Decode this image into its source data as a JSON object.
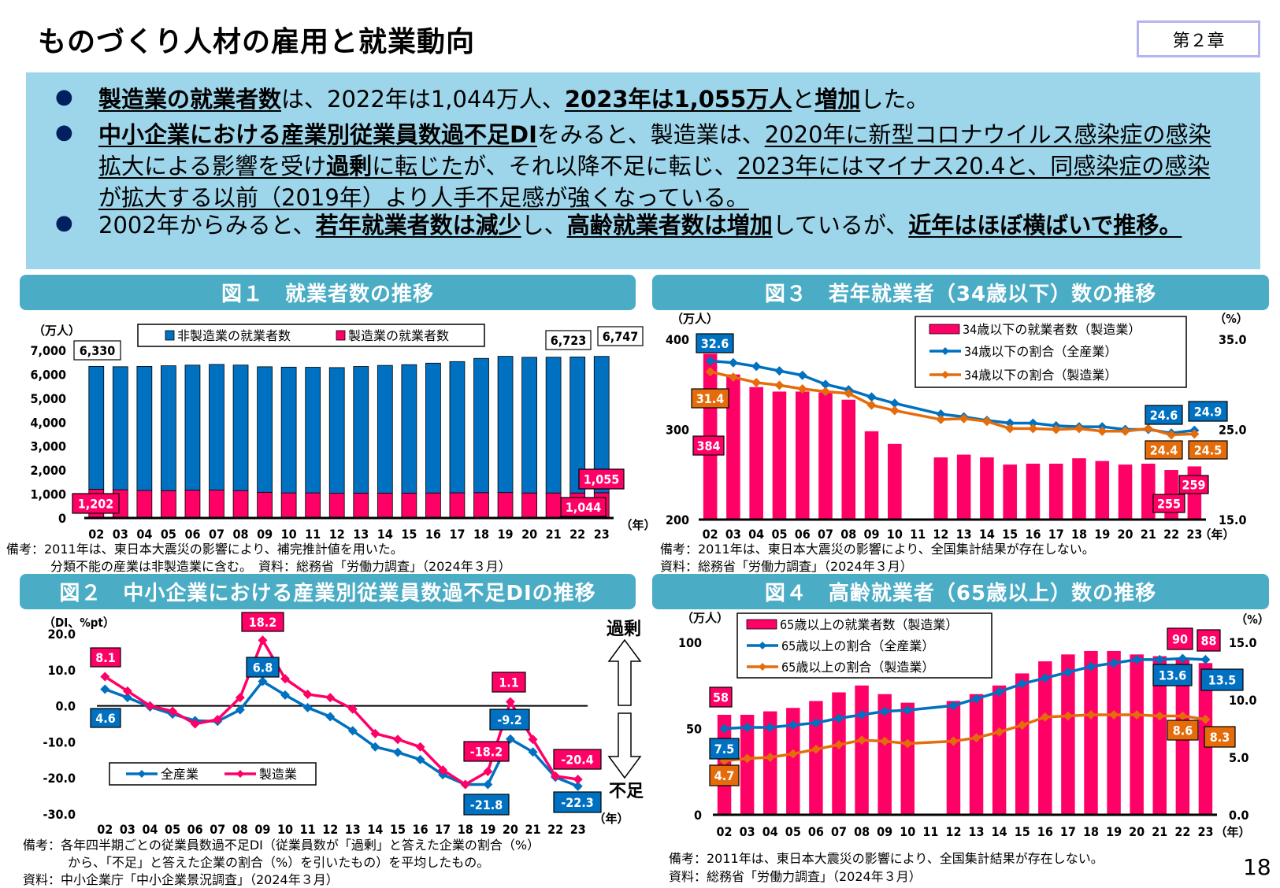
{
  "header": {
    "title": "ものづくり人材の雇用と就業動向",
    "chapter": "第２章"
  },
  "summary": {
    "bullet": "●",
    "lines": [
      [
        {
          "t": "製造業の就業者数",
          "b": 1,
          "u": 1
        },
        {
          "t": "は、2022年は1,044万人、"
        },
        {
          "t": "2023年は1,055万人",
          "b": 1,
          "u": 1
        },
        {
          "t": "と"
        },
        {
          "t": "増加",
          "b": 1,
          "u": 1
        },
        {
          "t": "した。"
        }
      ],
      [
        {
          "t": "中小企業における産業別従業員数過不足DI",
          "b": 1,
          "u": 1
        },
        {
          "t": "をみると、製造業は、"
        },
        {
          "t": "2020年に新型コロナウイルス感染症の感染拡大による影響を受け",
          "u": 1
        },
        {
          "t": "過剰",
          "b": 1,
          "u": 1
        },
        {
          "t": "に転じた",
          "u": 1
        },
        {
          "t": "が、それ以降不足に転じ、"
        },
        {
          "t": "2023年にはマイナス20.4と、同感染症の感染が拡大する以前（2019年）より人手不足感が強くなっている。",
          "u": 1
        }
      ],
      [
        {
          "t": "2002年からみると、"
        },
        {
          "t": "若年就業者数は減少",
          "b": 1,
          "u": 1
        },
        {
          "t": "し、"
        },
        {
          "t": "高齢就業者数は増加",
          "b": 1,
          "u": 1
        },
        {
          "t": "しているが、"
        },
        {
          "t": "近年はほぼ横ばいで推移。",
          "b": 1,
          "u": 1
        }
      ]
    ]
  },
  "figures": [
    {
      "title": "図１　就業者数の推移",
      "notes": [
        "備考：2011年は、東日本大震災の影響により、補完推計値を用いた。",
        "分類不能の産業は非製造業に含む。　資料：総務省「労働力調査」（2024年３月）"
      ]
    },
    {
      "title": "図２　中小企業における産業別従業員数過不足DIの推移",
      "notes": [
        "備考：各年四半期ごとの従業員数過不足DI（従業員数が「過剰」と答えた企業の割合（%）",
        "から、「不足」と答えた企業の割合（%）を引いたもの）を平均したもの。",
        "資料：中小企業庁「中小企業景況調査」（2024年３月）"
      ],
      "up_label": "過剰",
      "down_label": "不足"
    },
    {
      "title": "図３　若年就業者（34歳以下）数の推移",
      "notes": [
        "備考：2011年は、東日本大震災の影響により、全国集計結果が存在しない。",
        "資料：総務省「労働力調査」（2024年３月）"
      ]
    },
    {
      "title": "図４　高齢就業者（65歳以上）数の推移",
      "notes": [
        "備考：2011年は、東日本大震災の影響により、全国集計結果が存在しない。",
        "資料：総務省「労働力調査」（2024年３月）"
      ]
    }
  ],
  "page_number": "18",
  "chart_data": [
    {
      "type": "bar",
      "stacked": true,
      "title": "図１　就業者数の推移",
      "left_unit": "（万人）",
      "x_unit": "（年）",
      "categories": [
        "02",
        "03",
        "04",
        "05",
        "06",
        "07",
        "08",
        "09",
        "10",
        "11",
        "12",
        "13",
        "14",
        "15",
        "16",
        "17",
        "18",
        "19",
        "20",
        "21",
        "22",
        "23"
      ],
      "series": [
        {
          "name": "非製造業の就業者数",
          "kind": "bar",
          "color": "#0070c0",
          "values": [
            5128,
            5138,
            5179,
            5214,
            5221,
            5247,
            5241,
            5241,
            5249,
            5244,
            5248,
            5287,
            5331,
            5362,
            5420,
            5478,
            5604,
            5687,
            5665,
            5668,
            5679,
            5692
          ]
        },
        {
          "name": "製造業の就業者数",
          "kind": "bar",
          "color": "#ff0066",
          "values": [
            1202,
            1178,
            1150,
            1142,
            1161,
            1165,
            1144,
            1073,
            1049,
            1049,
            1032,
            1039,
            1040,
            1039,
            1045,
            1052,
            1060,
            1063,
            1045,
            1045,
            1044,
            1055
          ]
        }
      ],
      "left_axis": {
        "min": 0,
        "max": 7000,
        "ticks": [
          {
            "v": 0,
            "l": "0"
          },
          {
            "v": 1000,
            "l": "1,000"
          },
          {
            "v": 2000,
            "l": "2,000"
          },
          {
            "v": 3000,
            "l": "3,000"
          },
          {
            "v": 4000,
            "l": "4,000"
          },
          {
            "v": 5000,
            "l": "5,000"
          },
          {
            "v": 6000,
            "l": "6,000"
          },
          {
            "v": 7000,
            "l": "7,000"
          }
        ]
      },
      "annotations": [
        {
          "text": "6,330",
          "style": "plain"
        },
        {
          "text": "6,723",
          "style": "plain"
        },
        {
          "text": "6,747",
          "style": "plain"
        },
        {
          "text": "1,202",
          "style": "#ff0066"
        },
        {
          "text": "1,044",
          "style": "#ff0066"
        },
        {
          "text": "1,055",
          "style": "#ff0066"
        }
      ]
    },
    {
      "type": "line",
      "title": "図２　中小企業における産業別従業員数過不足DIの推移",
      "left_unit": "（DI、%pt）",
      "x_unit": "（年）",
      "categories": [
        "02",
        "03",
        "04",
        "05",
        "06",
        "07",
        "08",
        "09",
        "10",
        "11",
        "12",
        "13",
        "14",
        "15",
        "16",
        "17",
        "18",
        "19",
        "20",
        "21",
        "22",
        "23"
      ],
      "series": [
        {
          "name": "全産業",
          "kind": "line",
          "axis": "left",
          "color": "#0070c0",
          "values": [
            4.6,
            2.3,
            -0.3,
            -2.3,
            -4.1,
            -4.3,
            -1.1,
            6.8,
            3.0,
            -0.5,
            -3.0,
            -6.9,
            -11.4,
            -12.9,
            -14.9,
            -19.1,
            -21.8,
            -21.8,
            -9.2,
            -12.8,
            -19.8,
            -22.3
          ]
        },
        {
          "name": "製造業",
          "kind": "line",
          "axis": "left",
          "color": "#ff0066",
          "values": [
            8.1,
            4.1,
            0.0,
            -1.5,
            -5.0,
            -3.8,
            2.3,
            18.2,
            7.5,
            3.2,
            2.3,
            -0.9,
            -7.7,
            -9.3,
            -11.4,
            -17.8,
            -21.8,
            -18.2,
            1.1,
            -9.3,
            -19.5,
            -20.4
          ]
        }
      ],
      "left_axis": {
        "min": -30,
        "max": 20,
        "ticks": [
          {
            "v": 20,
            "l": "20.0"
          },
          {
            "v": 10,
            "l": "10.0"
          },
          {
            "v": 0,
            "l": "0.0"
          },
          {
            "v": -10,
            "l": "-10.0"
          },
          {
            "v": -20,
            "l": "-20.0"
          },
          {
            "v": -30,
            "l": "-30.0"
          }
        ]
      },
      "annotations": [
        {
          "text": "8.1",
          "style": "#ff0066"
        },
        {
          "text": "18.2",
          "style": "#ff0066"
        },
        {
          "text": "4.6",
          "style": "#0070c0"
        },
        {
          "text": "6.8",
          "style": "#0070c0"
        },
        {
          "text": "1.1",
          "style": "#ff0066"
        },
        {
          "text": "-9.2",
          "style": "#0070c0"
        },
        {
          "text": "-18.2",
          "style": "#ff0066"
        },
        {
          "text": "-21.8",
          "style": "#0070c0"
        },
        {
          "text": "-20.4",
          "style": "#ff0066"
        },
        {
          "text": "-22.3",
          "style": "#0070c0"
        }
      ]
    },
    {
      "type": "bar+line",
      "title": "図３　若年就業者（34歳以下）数の推移",
      "left_unit": "（万人）",
      "right_unit": "（%）",
      "x_unit": "（年）",
      "categories": [
        "02",
        "03",
        "04",
        "05",
        "06",
        "07",
        "08",
        "09",
        "10",
        "11",
        "12",
        "13",
        "14",
        "15",
        "16",
        "17",
        "18",
        "19",
        "20",
        "21",
        "22",
        "23"
      ],
      "series": [
        {
          "name": "34歳以下の就業者数（製造業）",
          "kind": "bar",
          "axis": "left",
          "color": "#ff0066",
          "values": [
            384,
            361,
            347,
            342,
            342,
            341,
            333,
            298,
            284,
            null,
            269,
            272,
            269,
            261,
            262,
            262,
            268,
            265,
            261,
            262,
            255,
            259
          ]
        },
        {
          "name": "34歳以下の割合（全産業）",
          "kind": "line",
          "axis": "right",
          "color": "#0070c0",
          "values": [
            32.6,
            32.4,
            32.0,
            31.5,
            31.0,
            30.0,
            29.4,
            28.6,
            27.9,
            null,
            26.7,
            26.4,
            26.0,
            25.7,
            25.7,
            25.4,
            25.3,
            25.3,
            25.0,
            25.0,
            24.6,
            24.9
          ]
        },
        {
          "name": "34歳以下の割合（製造業）",
          "kind": "line",
          "axis": "right",
          "color": "#e46c0a",
          "values": [
            31.4,
            30.8,
            30.2,
            29.9,
            29.5,
            29.2,
            29.0,
            27.7,
            27.1,
            null,
            26.1,
            26.2,
            25.9,
            25.1,
            25.1,
            25.0,
            25.1,
            24.8,
            24.8,
            25.1,
            24.4,
            24.5
          ]
        }
      ],
      "left_axis": {
        "min": 200,
        "max": 400,
        "ticks": [
          {
            "v": 400,
            "l": "400"
          },
          {
            "v": 300,
            "l": "300"
          },
          {
            "v": 200,
            "l": "200"
          }
        ]
      },
      "right_axis": {
        "min": 15,
        "max": 35,
        "ticks": [
          {
            "v": 35,
            "l": "35.0"
          },
          {
            "v": 25,
            "l": "25.0"
          },
          {
            "v": 15,
            "l": "15.0"
          }
        ]
      },
      "annotations": [
        {
          "text": "32.6",
          "style": "#0070c0"
        },
        {
          "text": "31.4",
          "style": "#e46c0a"
        },
        {
          "text": "384",
          "style": "#ff0066"
        },
        {
          "text": "24.6",
          "style": "#0070c0"
        },
        {
          "text": "24.9",
          "style": "#0070c0"
        },
        {
          "text": "24.4",
          "style": "#e46c0a"
        },
        {
          "text": "24.5",
          "style": "#e46c0a"
        },
        {
          "text": "255",
          "style": "#ff0066"
        },
        {
          "text": "259",
          "style": "#ff0066"
        }
      ]
    },
    {
      "type": "bar+line",
      "title": "図４　高齢就業者（65歳以上）数の推移",
      "left_unit": "（万人）",
      "right_unit": "（%）",
      "x_unit": "（年）",
      "categories": [
        "02",
        "03",
        "04",
        "05",
        "06",
        "07",
        "08",
        "09",
        "10",
        "11",
        "12",
        "13",
        "14",
        "15",
        "16",
        "17",
        "18",
        "19",
        "20",
        "21",
        "22",
        "23"
      ],
      "series": [
        {
          "name": "65歳以上の就業者数（製造業）",
          "kind": "bar",
          "axis": "left",
          "color": "#ff0066",
          "values": [
            58,
            58,
            60,
            62,
            66,
            71,
            75,
            70,
            65,
            null,
            66,
            70,
            75,
            82,
            89,
            93,
            95,
            95,
            93,
            92,
            90,
            88
          ]
        },
        {
          "name": "65歳以上の割合（全産業）",
          "kind": "line",
          "axis": "right",
          "color": "#0070c0",
          "values": [
            7.5,
            7.6,
            7.6,
            7.8,
            8.0,
            8.4,
            8.7,
            9.0,
            9.1,
            null,
            9.5,
            10.1,
            10.7,
            11.4,
            11.9,
            12.4,
            12.9,
            13.2,
            13.5,
            13.5,
            13.6,
            13.5
          ]
        },
        {
          "name": "65歳以上の割合（製造業）",
          "kind": "line",
          "axis": "right",
          "color": "#e46c0a",
          "values": [
            4.7,
            4.9,
            5.0,
            5.3,
            5.7,
            6.1,
            6.5,
            6.4,
            6.2,
            null,
            6.4,
            6.7,
            7.2,
            7.8,
            8.5,
            8.6,
            8.7,
            8.7,
            8.7,
            8.6,
            8.6,
            8.3
          ]
        }
      ],
      "left_axis": {
        "min": 0,
        "max": 100,
        "ticks": [
          {
            "v": 100,
            "l": "100"
          },
          {
            "v": 50,
            "l": "50"
          },
          {
            "v": 0,
            "l": "0"
          }
        ]
      },
      "right_axis": {
        "min": 0,
        "max": 15,
        "ticks": [
          {
            "v": 15,
            "l": "15.0"
          },
          {
            "v": 10,
            "l": "10.0"
          },
          {
            "v": 5,
            "l": "5.0"
          },
          {
            "v": 0,
            "l": "0.0"
          }
        ]
      },
      "annotations": [
        {
          "text": "58",
          "style": "#ff0066"
        },
        {
          "text": "7.5",
          "style": "#0070c0"
        },
        {
          "text": "4.7",
          "style": "#e46c0a"
        },
        {
          "text": "90",
          "style": "#ff0066"
        },
        {
          "text": "88",
          "style": "#ff0066"
        },
        {
          "text": "13.6",
          "style": "#0070c0"
        },
        {
          "text": "13.5",
          "style": "#0070c0"
        },
        {
          "text": "8.6",
          "style": "#e46c0a"
        },
        {
          "text": "8.3",
          "style": "#e46c0a"
        }
      ]
    }
  ]
}
